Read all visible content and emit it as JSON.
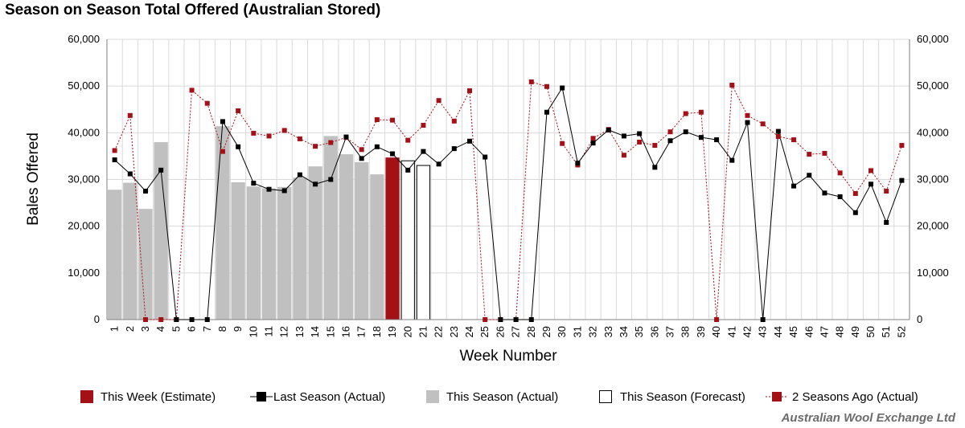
{
  "chart_data": {
    "type": "bar+line",
    "title": "Season on Season Total Offered (Australian Stored)",
    "xlabel": "Week Number",
    "ylabel": "Bales Offered",
    "ylim": [
      0,
      60000
    ],
    "yticks": [
      "0",
      "10,000",
      "20,000",
      "30,000",
      "40,000",
      "50,000",
      "60,000"
    ],
    "ytick_values": [
      0,
      10000,
      20000,
      30000,
      40000,
      50000,
      60000
    ],
    "categories": [
      "1",
      "2",
      "3",
      "4",
      "5",
      "6",
      "7",
      "8",
      "9",
      "10",
      "11",
      "12",
      "13",
      "14",
      "15",
      "16",
      "17",
      "18",
      "19",
      "20",
      "21",
      "22",
      "23",
      "24",
      "25",
      "26",
      "27",
      "28",
      "29",
      "30",
      "31",
      "32",
      "33",
      "34",
      "35",
      "36",
      "37",
      "38",
      "39",
      "40",
      "41",
      "42",
      "43",
      "44",
      "45",
      "46",
      "47",
      "48",
      "49",
      "50",
      "51",
      "52"
    ],
    "this_season_actual": [
      27800,
      29300,
      23700,
      38000,
      null,
      null,
      null,
      41400,
      29400,
      28500,
      28100,
      28400,
      30400,
      32800,
      39300,
      35400,
      33700,
      31100,
      null,
      null,
      null,
      null,
      null,
      null,
      null,
      null,
      null,
      null,
      null,
      null,
      null,
      null,
      null,
      null,
      null,
      null,
      null,
      null,
      null,
      null,
      null,
      null,
      null,
      null,
      null,
      null,
      null,
      null,
      null,
      null,
      null,
      null
    ],
    "this_week_estimate": [
      null,
      null,
      null,
      null,
      null,
      null,
      null,
      null,
      null,
      null,
      null,
      null,
      null,
      null,
      null,
      null,
      null,
      null,
      34700,
      null,
      null,
      null,
      null,
      null,
      null,
      null,
      null,
      null,
      null,
      null,
      null,
      null,
      null,
      null,
      null,
      null,
      null,
      null,
      null,
      null,
      null,
      null,
      null,
      null,
      null,
      null,
      null,
      null,
      null,
      null,
      null,
      null
    ],
    "this_season_forecast": [
      null,
      null,
      null,
      null,
      null,
      null,
      null,
      null,
      null,
      null,
      null,
      null,
      null,
      null,
      null,
      null,
      null,
      null,
      null,
      34000,
      33000,
      null,
      null,
      null,
      null,
      null,
      null,
      null,
      null,
      null,
      null,
      null,
      null,
      null,
      null,
      null,
      null,
      null,
      null,
      null,
      null,
      null,
      null,
      null,
      null,
      null,
      null,
      null,
      null,
      null,
      null,
      null
    ],
    "last_season_actual": [
      34200,
      31200,
      27500,
      32000,
      0,
      0,
      0,
      42400,
      37000,
      29200,
      27900,
      27600,
      31000,
      29000,
      30000,
      39100,
      34500,
      37000,
      35500,
      32000,
      36000,
      33300,
      36600,
      38200,
      34800,
      0,
      0,
      0,
      44400,
      49600,
      33500,
      37800,
      40600,
      39300,
      39800,
      32600,
      38300,
      40200,
      39000,
      38500,
      34100,
      42200,
      0,
      40300,
      28600,
      30900,
      27100,
      26300,
      22900,
      29000,
      20800,
      29800
    ],
    "two_seasons_ago_actual": [
      36200,
      43700,
      0,
      0,
      0,
      49100,
      46300,
      36000,
      44700,
      39900,
      39300,
      40500,
      38700,
      37100,
      37900,
      39000,
      36400,
      42800,
      42700,
      38400,
      41600,
      46900,
      42500,
      49000,
      0,
      0,
      0,
      50900,
      49900,
      37700,
      33100,
      38800,
      40700,
      35200,
      38000,
      37300,
      40200,
      44100,
      44400,
      0,
      50200,
      43700,
      41900,
      39200,
      38500,
      35400,
      35600,
      31400,
      27000,
      31900,
      27500,
      37300
    ],
    "legend": [
      "This Week (Estimate)",
      "Last Season (Actual)",
      "This Season (Actual)",
      "This Season (Forecast)",
      "2 Seasons Ago (Actual)"
    ],
    "colors": {
      "this_week": "#a31016",
      "last_season": "#000000",
      "this_season": "#c0c0c0",
      "forecast_fill": "#ffffff",
      "forecast_stroke": "#000000",
      "two_seasons_ago": "#a31016",
      "grid": "#d9d9d9",
      "axis": "#808080"
    }
  },
  "credit": "Australian Wool Exchange Ltd"
}
